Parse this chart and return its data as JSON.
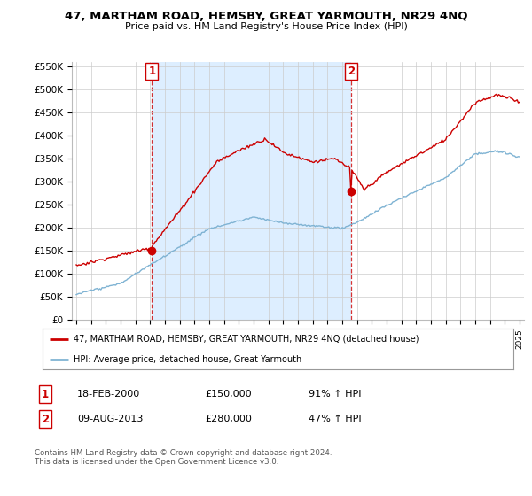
{
  "title": "47, MARTHAM ROAD, HEMSBY, GREAT YARMOUTH, NR29 4NQ",
  "subtitle": "Price paid vs. HM Land Registry's House Price Index (HPI)",
  "legend_line1": "47, MARTHAM ROAD, HEMSBY, GREAT YARMOUTH, NR29 4NQ (detached house)",
  "legend_line2": "HPI: Average price, detached house, Great Yarmouth",
  "annotation1_label": "1",
  "annotation1_date": "18-FEB-2000",
  "annotation1_price": "£150,000",
  "annotation1_hpi": "91% ↑ HPI",
  "annotation2_label": "2",
  "annotation2_date": "09-AUG-2013",
  "annotation2_price": "£280,000",
  "annotation2_hpi": "47% ↑ HPI",
  "footer": "Contains HM Land Registry data © Crown copyright and database right 2024.\nThis data is licensed under the Open Government Licence v3.0.",
  "sale_color": "#cc0000",
  "hpi_color": "#7fb3d3",
  "sale1_x": 2000.12,
  "sale1_y": 150000,
  "sale2_x": 2013.61,
  "sale2_y": 280000,
  "ylim": [
    0,
    560000
  ],
  "yticks": [
    0,
    50000,
    100000,
    150000,
    200000,
    250000,
    300000,
    350000,
    400000,
    450000,
    500000,
    550000
  ],
  "xlim_start": 1994.7,
  "xlim_end": 2025.3,
  "background_color": "#ffffff",
  "grid_color": "#cccccc",
  "shade_color": "#ddeeff"
}
